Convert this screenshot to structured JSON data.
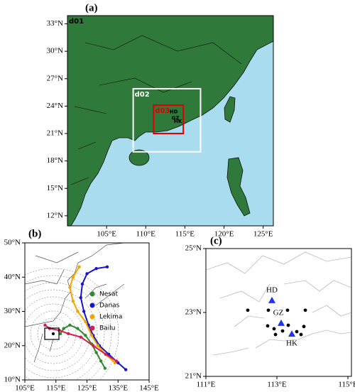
{
  "panel_a": {
    "label": "(a)",
    "xlim": [
      100,
      126.3
    ],
    "ylim": [
      10.9,
      33.9
    ],
    "xticks": [
      {
        "value": 105,
        "label": "105°E"
      },
      {
        "value": 110,
        "label": "110°E"
      },
      {
        "value": 115,
        "label": "115°E"
      },
      {
        "value": 120,
        "label": "120°E"
      },
      {
        "value": 125,
        "label": "125°E"
      }
    ],
    "yticks": [
      {
        "value": 12,
        "label": "12°N"
      },
      {
        "value": 15,
        "label": "15°N"
      },
      {
        "value": 18,
        "label": "18°N"
      },
      {
        "value": 21,
        "label": "21°N"
      },
      {
        "value": 24,
        "label": "24°N"
      },
      {
        "value": 27,
        "label": "27°N"
      },
      {
        "value": 30,
        "label": "30°N"
      },
      {
        "value": 33,
        "label": "33°N"
      }
    ],
    "domains": [
      {
        "name": "d01"
      },
      {
        "name": "d02",
        "lon": [
          108.4,
          117.0
        ],
        "lat": [
          19.0,
          25.9
        ],
        "color": "#ffffff"
      },
      {
        "name": "d03",
        "lon": [
          111.0,
          114.8
        ],
        "lat": [
          21.0,
          24.1
        ],
        "color": "#e00000"
      }
    ],
    "site_labels": [
      "HD",
      "GZ",
      "HK"
    ]
  },
  "panel_b": {
    "label": "(b)",
    "xlim": [
      105,
      145
    ],
    "ylim": [
      10,
      50
    ],
    "xticks": [
      {
        "value": 105,
        "label": "105°E"
      },
      {
        "value": 115,
        "label": "115°E"
      },
      {
        "value": 125,
        "label": "125°E"
      },
      {
        "value": 135,
        "label": "135°E"
      },
      {
        "value": 145,
        "label": "145°E"
      }
    ],
    "yticks": [
      {
        "value": 10,
        "label": "10°N"
      },
      {
        "value": 20,
        "label": "20°N"
      },
      {
        "value": 30,
        "label": "30°N"
      },
      {
        "value": 40,
        "label": "40°N"
      },
      {
        "value": 50,
        "label": "50°N"
      }
    ],
    "legend": "center right",
    "series": [
      {
        "name": "Nesat",
        "color": "#2e8b2e",
        "lon": [
          130.8,
          129.5,
          128,
          126.5,
          124.5,
          122,
          119.5,
          117.5,
          116.4
        ],
        "lat": [
          13.4,
          15.5,
          18,
          20.5,
          23,
          25,
          26,
          25,
          23.5
        ]
      },
      {
        "name": "Danas",
        "color": "#1515d0",
        "lon": [
          137.5,
          135,
          132,
          129,
          127,
          125.5,
          124,
          123,
          123.5,
          125,
          128,
          131.5
        ],
        "lat": [
          13,
          15,
          17.5,
          20,
          23,
          26,
          30,
          34,
          38,
          41,
          42.5,
          43
        ]
      },
      {
        "name": "Lekima",
        "color": "#f5a300",
        "lon": [
          134,
          131,
          128.5,
          126.5,
          124.5,
          122,
          120.5,
          119.5,
          120.5,
          122.5
        ],
        "lat": [
          15,
          17.5,
          20,
          23,
          27,
          30,
          33,
          37,
          40,
          43
        ]
      },
      {
        "name": "Bailu",
        "color": "#d42050",
        "lon": [
          134.5,
          131,
          127,
          123,
          119,
          116,
          113,
          111.5
        ],
        "lat": [
          15.5,
          17.5,
          20,
          22.5,
          23.5,
          24.5,
          25,
          26
        ]
      }
    ]
  },
  "panel_c": {
    "label": "(c)",
    "xlim": [
      111,
      115.1
    ],
    "ylim": [
      21,
      25
    ],
    "xticks": [
      {
        "value": 111,
        "label": "111°E"
      },
      {
        "value": 113,
        "label": "113°E"
      },
      {
        "value": 115,
        "label": "115°E"
      }
    ],
    "yticks": [
      {
        "value": 21,
        "label": "21°N"
      },
      {
        "value": 23,
        "label": "23°N"
      },
      {
        "value": 25,
        "label": "25°N"
      }
    ],
    "sites": [
      {
        "name": "HD",
        "lon": 112.86,
        "lat": 23.38
      },
      {
        "name": "GZ",
        "lon": 113.12,
        "lat": 22.67
      },
      {
        "name": "HK",
        "lon": 113.42,
        "lat": 22.33
      }
    ],
    "stations": {
      "lon": [
        112.18,
        112.76,
        113.3,
        113.8,
        112.74,
        112.92,
        113.32,
        113.76,
        112.96,
        113.16,
        113.56,
        113.68
      ],
      "lat": [
        23.07,
        23.07,
        23.07,
        23.07,
        22.58,
        22.49,
        22.6,
        22.56,
        22.31,
        22.42,
        22.4,
        22.31
      ]
    }
  }
}
